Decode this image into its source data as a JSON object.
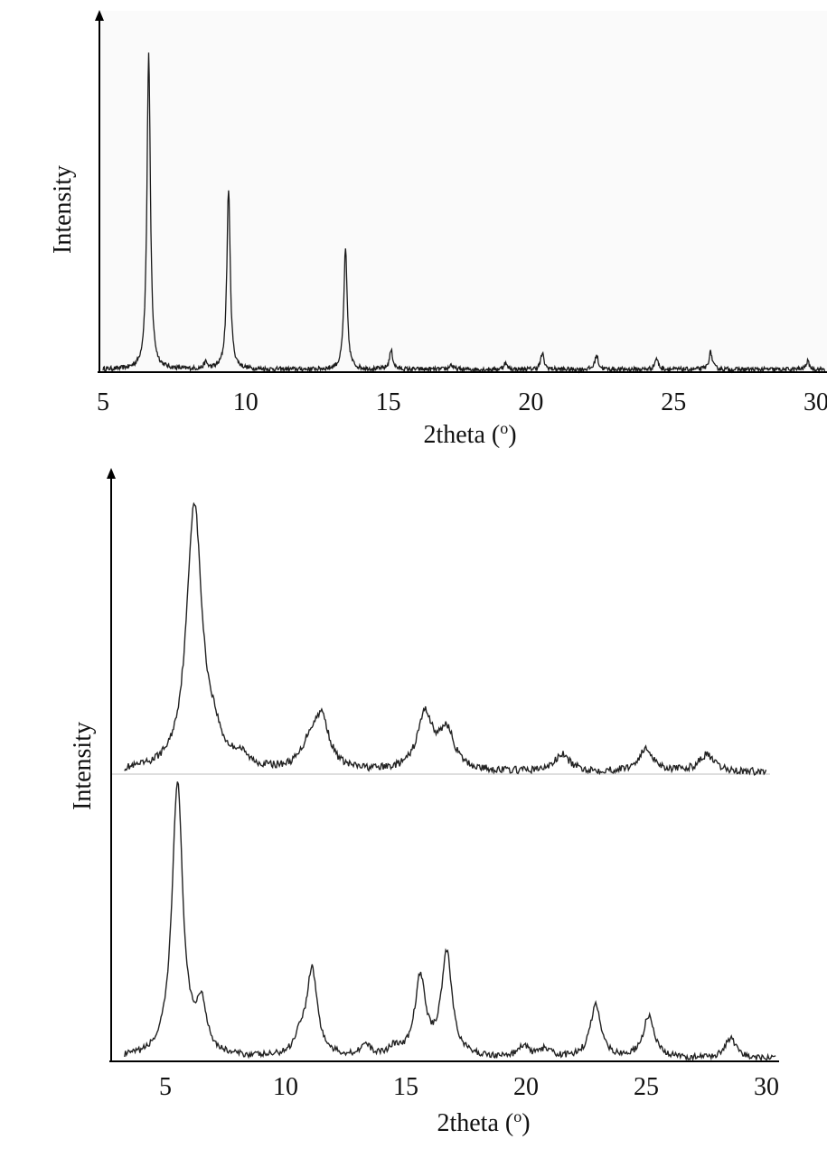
{
  "chart_data": [
    {
      "type": "line",
      "xlabel": "2theta (o)",
      "ylabel": "Intensity",
      "xlim": [
        5,
        30
      ],
      "ylim": [
        0,
        100
      ],
      "xticks": [
        5,
        10,
        15,
        20,
        25,
        30
      ],
      "xtick_labels": [
        "5",
        "10",
        "15",
        "20",
        "25",
        "30"
      ],
      "grid": false,
      "series": [
        {
          "peaks": [
            [
              6.6,
              100
            ],
            [
              8.6,
              2
            ],
            [
              9.4,
              57
            ],
            [
              13.5,
              38
            ],
            [
              15.1,
              6
            ],
            [
              17.2,
              1.5
            ],
            [
              19.1,
              2
            ],
            [
              20.4,
              5
            ],
            [
              22.3,
              4.5
            ],
            [
              24.4,
              3.5
            ],
            [
              26.3,
              5.5
            ],
            [
              29.7,
              2.5
            ]
          ]
        }
      ]
    },
    {
      "type": "line",
      "xlabel": "2theta (o)",
      "ylabel": "Intensity",
      "xlim": [
        3.3,
        30.5
      ],
      "xticks": [
        5,
        10,
        15,
        20,
        25,
        30
      ],
      "xtick_labels": [
        "5",
        "10",
        "15",
        "20",
        "25",
        "30"
      ],
      "grid": false,
      "series": [
        {
          "position": "upper",
          "baseline_offset": 100,
          "peaks": [
            [
              6.2,
              95
            ],
            [
              7.0,
              8
            ],
            [
              8.1,
              4
            ],
            [
              11.0,
              8
            ],
            [
              11.5,
              18
            ],
            [
              15.8,
              20
            ],
            [
              16.7,
              14
            ],
            [
              21.5,
              6
            ],
            [
              25.0,
              8
            ],
            [
              27.5,
              6
            ]
          ]
        },
        {
          "position": "lower",
          "baseline_offset": 0,
          "peaks": [
            [
              5.5,
              98
            ],
            [
              6.5,
              17
            ],
            [
              10.6,
              6
            ],
            [
              11.1,
              31
            ],
            [
              13.3,
              4
            ],
            [
              14.5,
              3
            ],
            [
              15.6,
              28
            ],
            [
              16.7,
              37
            ],
            [
              19.9,
              4
            ],
            [
              20.8,
              3
            ],
            [
              22.9,
              19
            ],
            [
              25.1,
              15
            ],
            [
              28.5,
              7
            ]
          ]
        }
      ]
    }
  ]
}
